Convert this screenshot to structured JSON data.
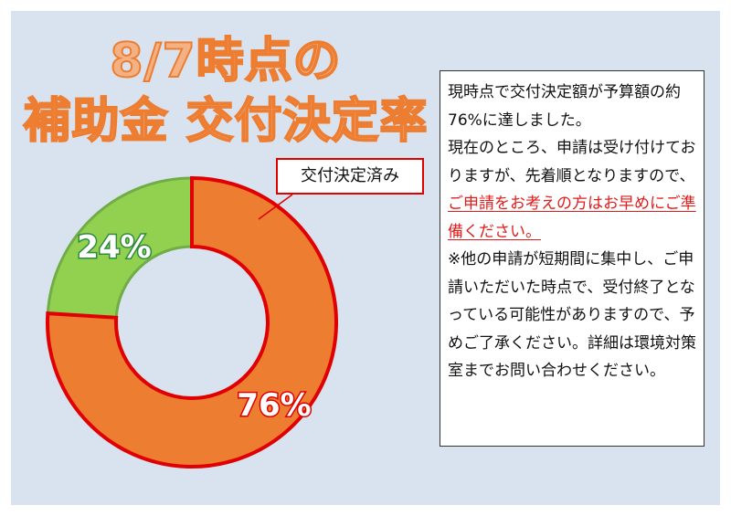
{
  "title": {
    "line1": "8/7時点の",
    "line2": "補助金 交付決定率"
  },
  "info": {
    "p1": "現時点で交付決定額が予算額の約 76%に達しました。",
    "p2_before": "現在のところ、申請は受け付けておりますが、先着順となりますので、",
    "p2_highlight": "ご申請をお考えの方はお早めにご準備ください。",
    "p3": "※他の申請が短期間に集中し、ご申請いただいた時点で、受付終了となっている可能性がありますので、予めご了承ください。詳細は環境対策室までお問い合わせください。"
  },
  "callout": {
    "label": "交付決定済み"
  },
  "colors": {
    "decided_fill": "#ed7d31",
    "decided_border": "#e00000",
    "remaining_fill": "#92d050",
    "remaining_border": "#70ad47",
    "title_fill": "#f4b183",
    "title_stroke": "#ed7d31",
    "highlight_text": "#e21b1b",
    "panel_bg": "#d9e2ef"
  },
  "chart_data": {
    "type": "pie",
    "style": "donut",
    "slices": [
      {
        "name": "交付決定済み",
        "value": 76,
        "label": "76%",
        "color": "#ed7d31",
        "border": "#e00000"
      },
      {
        "value": 24,
        "label": "24%",
        "color": "#92d050",
        "border": "#70ad47"
      }
    ]
  }
}
